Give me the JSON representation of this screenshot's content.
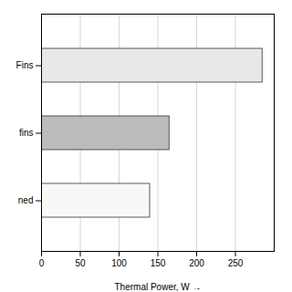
{
  "chart_data": {
    "type": "bar",
    "orientation": "horizontal",
    "categories": [
      "ned",
      "fins",
      "Fins"
    ],
    "values": [
      140,
      165,
      285
    ],
    "colors": [
      "#f8f8f8",
      "#bbbbbb",
      "#e8e8e8"
    ],
    "xlabel": "Thermal Power, W",
    "xlim": [
      0,
      300
    ],
    "xticks": [
      0,
      50,
      100,
      150,
      200,
      250
    ],
    "grid": true
  }
}
